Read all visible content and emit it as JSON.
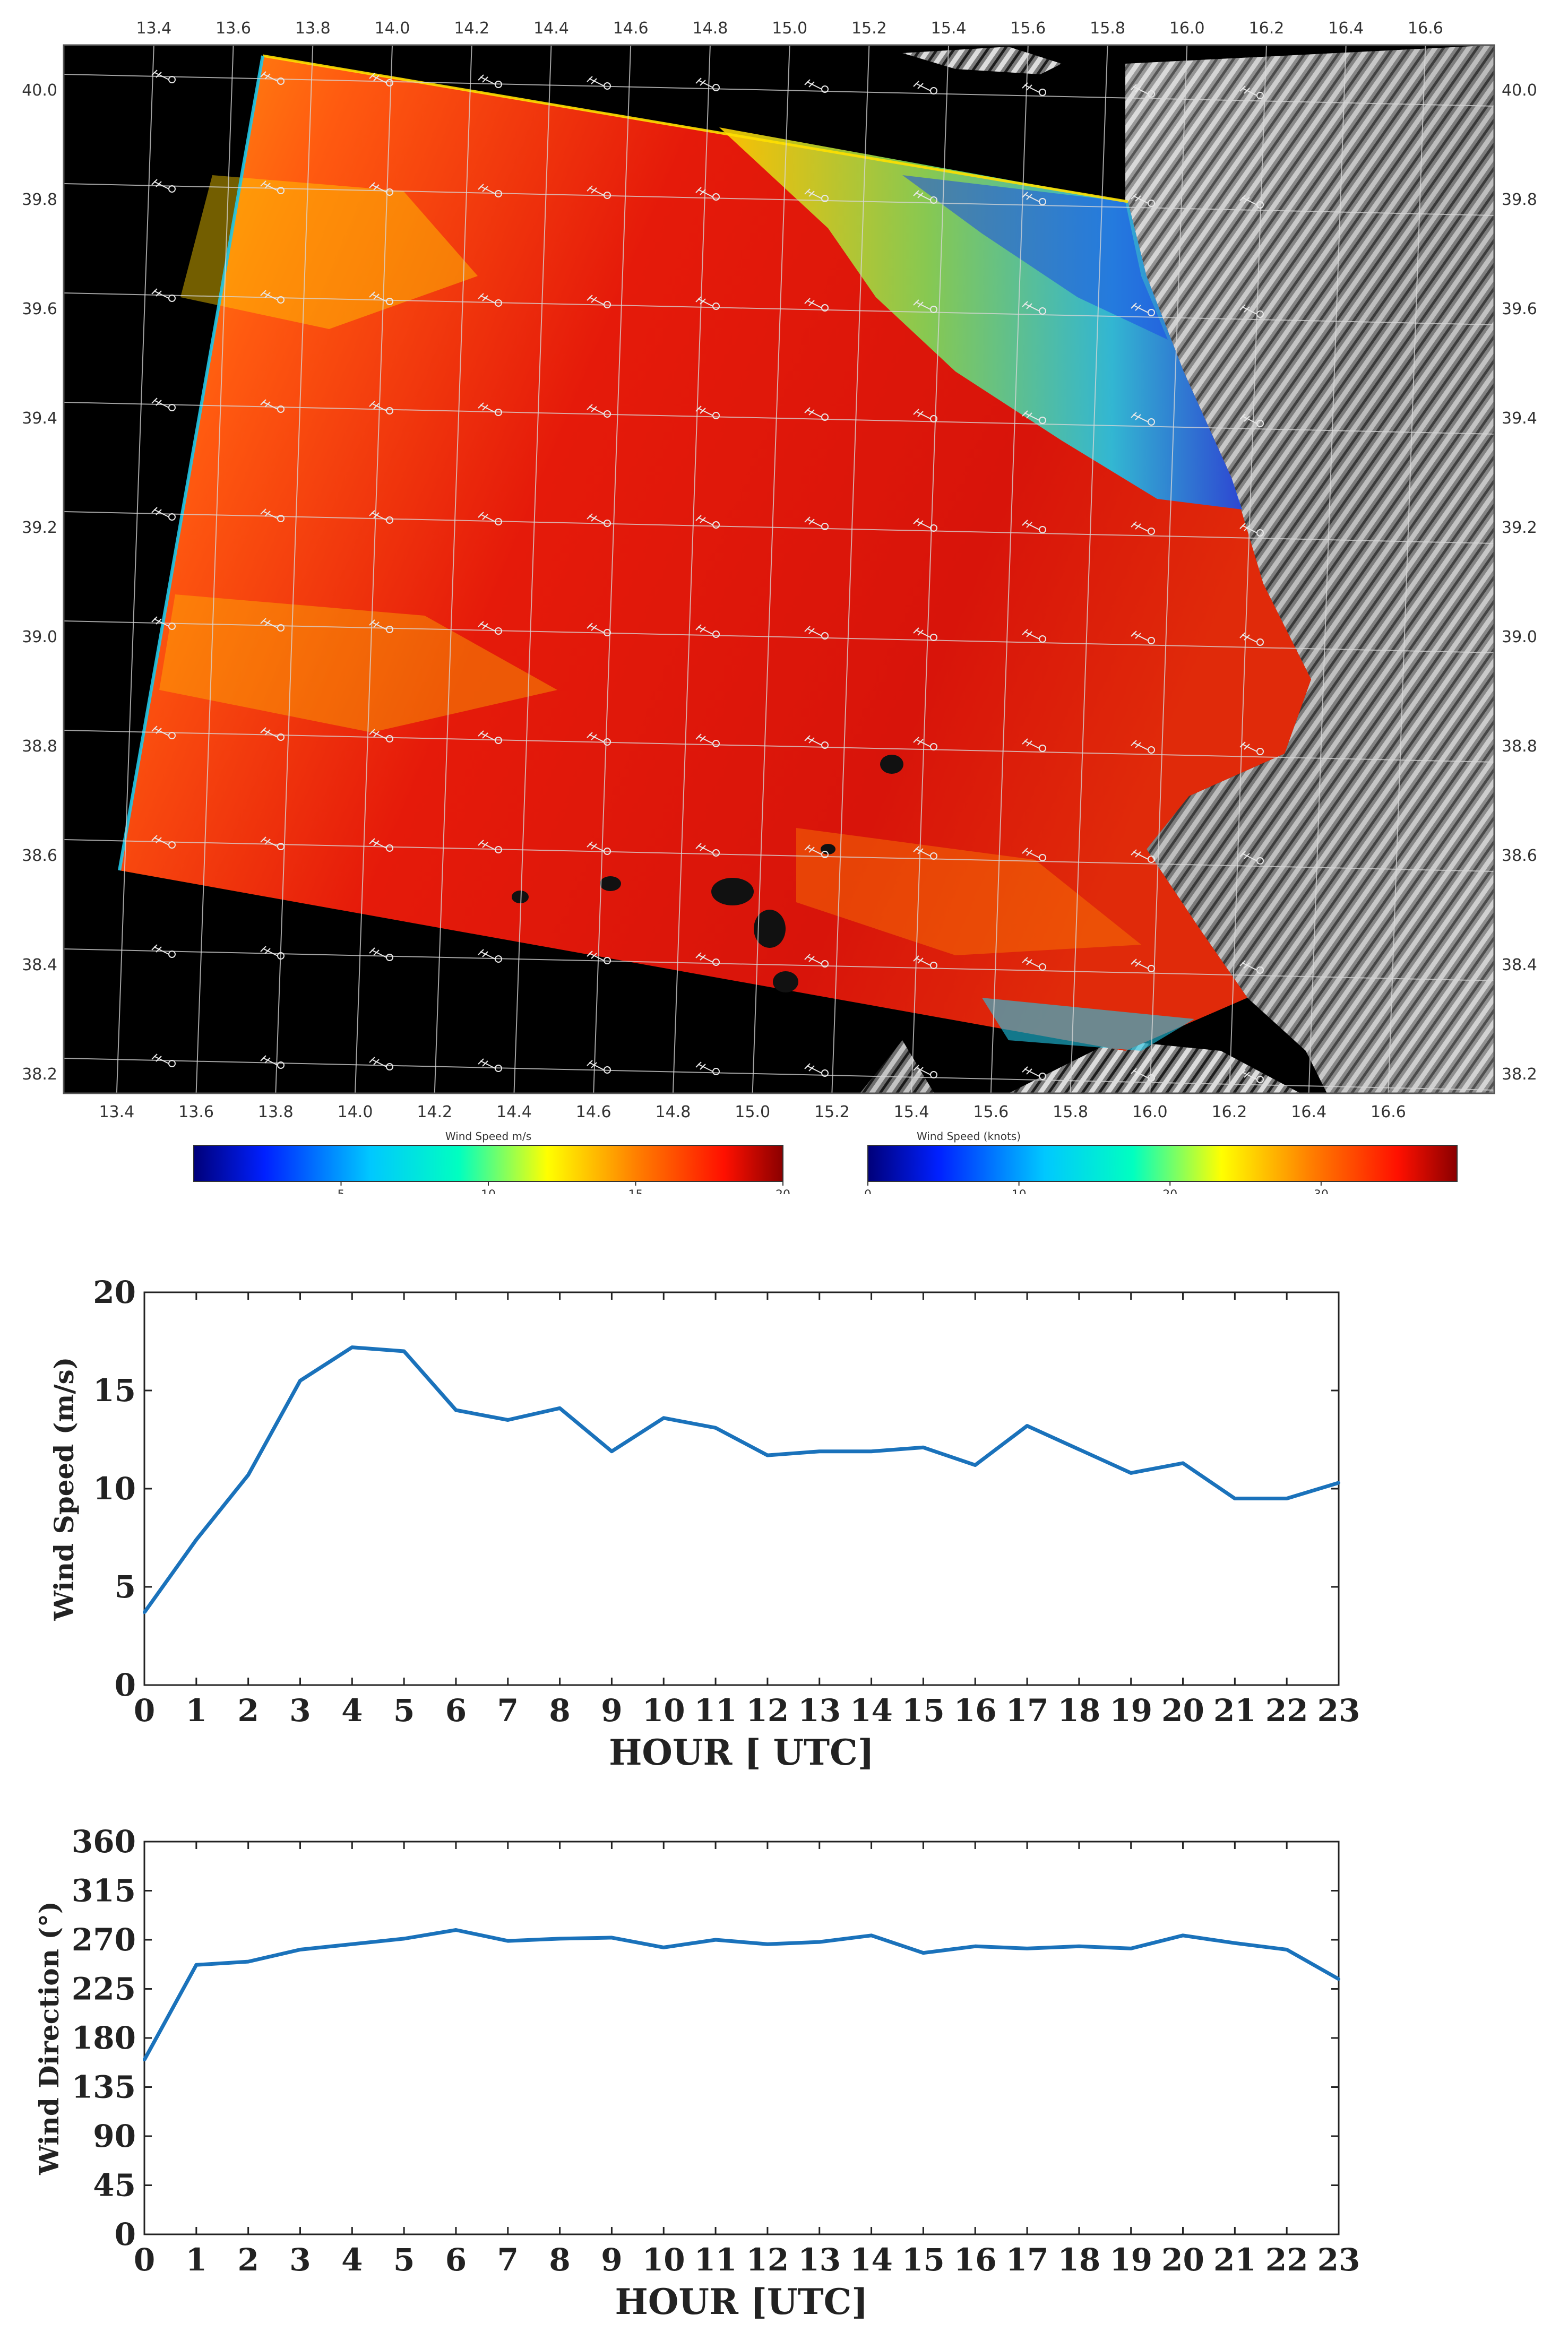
{
  "map": {
    "lon_ticks": [
      "13.4",
      "13.6",
      "13.8",
      "14.0",
      "14.2",
      "14.4",
      "14.6",
      "14.8",
      "15.0",
      "15.2",
      "15.4",
      "15.6",
      "15.8",
      "16.0",
      "16.2",
      "16.4",
      "16.6"
    ],
    "lat_ticks": [
      "40.0",
      "39.8",
      "39.6",
      "39.4",
      "39.2",
      "39.0",
      "38.8",
      "38.6",
      "38.4",
      "38.2"
    ],
    "colorbar_ms": {
      "label": "Wind Speed m/s",
      "ticks": [
        "5",
        "10",
        "15",
        "20"
      ],
      "tick_values": [
        5,
        10,
        15,
        20
      ],
      "range": [
        0,
        20
      ]
    },
    "colorbar_knots": {
      "label": "Wind Speed (knots)",
      "ticks": [
        "0",
        "10",
        "20",
        "30"
      ],
      "tick_values": [
        0,
        10,
        20,
        30
      ],
      "range": [
        0,
        39
      ]
    },
    "colors": {
      "background": "#000000",
      "ocean_high": "#e51a0a",
      "ocean_mid": "#ffd200",
      "ocean_low": "#20c8e8",
      "land": "#9a9a9a",
      "grid": "#d8d8d8"
    }
  },
  "chart_data": [
    {
      "type": "line",
      "title": "",
      "xlabel": "HOUR [ UTC]",
      "ylabel": "Wind Speed (m/s)",
      "x": [
        0,
        1,
        2,
        3,
        4,
        5,
        6,
        7,
        8,
        9,
        10,
        11,
        12,
        13,
        14,
        15,
        16,
        17,
        18,
        19,
        20,
        21,
        22,
        23
      ],
      "y": [
        3.7,
        7.4,
        10.7,
        15.5,
        17.2,
        17.0,
        14.0,
        13.5,
        14.1,
        11.9,
        13.6,
        13.1,
        11.7,
        11.9,
        11.9,
        12.1,
        11.2,
        13.2,
        12.0,
        10.8,
        11.3,
        9.5,
        9.5,
        10.3
      ],
      "xlim": [
        0,
        23
      ],
      "ylim": [
        0,
        20
      ],
      "yticks": [
        0,
        5,
        10,
        15,
        20
      ],
      "line_color": "#1a72bb"
    },
    {
      "type": "line",
      "title": "",
      "xlabel": "HOUR [UTC]",
      "ylabel": "Wind Direction (°)",
      "x": [
        0,
        1,
        2,
        3,
        4,
        5,
        6,
        7,
        8,
        9,
        10,
        11,
        12,
        13,
        14,
        15,
        16,
        17,
        18,
        19,
        20,
        21,
        22,
        23
      ],
      "y": [
        160,
        247,
        250,
        261,
        266,
        271,
        279,
        269,
        271,
        272,
        263,
        270,
        266,
        268,
        274,
        258,
        264,
        262,
        264,
        262,
        274,
        267,
        261,
        234
      ],
      "xlim": [
        0,
        23
      ],
      "ylim": [
        0,
        360
      ],
      "yticks": [
        0,
        45,
        90,
        135,
        180,
        225,
        270,
        315,
        360
      ],
      "line_color": "#1a72bb"
    }
  ]
}
